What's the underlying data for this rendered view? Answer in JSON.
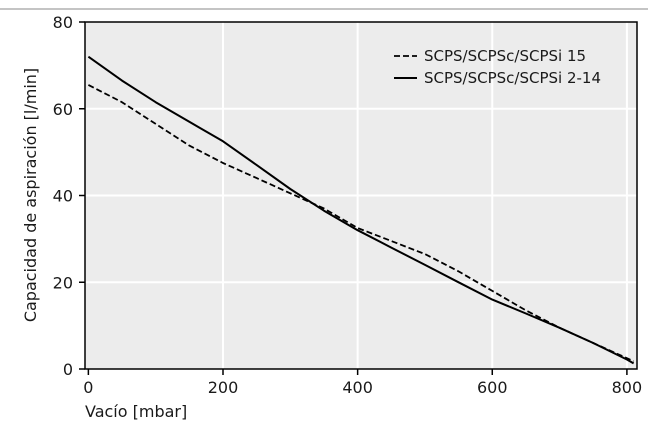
{
  "chart_data": {
    "type": "line",
    "xlabel": "Vacío [mbar]",
    "ylabel": "Capacidad de aspiración [l/min]",
    "xlim": [
      -5,
      815
    ],
    "ylim": [
      0,
      80
    ],
    "x_ticks": [
      0,
      200,
      400,
      600,
      800
    ],
    "y_ticks": [
      0,
      20,
      40,
      60,
      80
    ],
    "grid": true,
    "legend_position": "top-right",
    "colors": {
      "background": "#ececec",
      "grid": "#ffffff",
      "line": "#000000",
      "frame": "#000000"
    },
    "series": [
      {
        "name": "SCPS/SCPSc/SCPSi 15",
        "style": "dashed",
        "x": [
          0,
          50,
          100,
          150,
          200,
          250,
          300,
          350,
          400,
          450,
          500,
          550,
          600,
          650,
          700,
          750,
          800,
          810
        ],
        "y": [
          65.5,
          61.5,
          56.5,
          51.5,
          47.5,
          44,
          40.5,
          37,
          32.5,
          29.5,
          26.5,
          22.5,
          18,
          13.5,
          9.5,
          6,
          2.5,
          1.8
        ]
      },
      {
        "name": "SCPS/SCPSc/SCPSi 2-14",
        "style": "solid",
        "x": [
          0,
          50,
          100,
          150,
          200,
          250,
          300,
          350,
          400,
          450,
          500,
          550,
          600,
          650,
          700,
          750,
          800,
          810
        ],
        "y": [
          72,
          66.5,
          61.5,
          57,
          52.5,
          47,
          41.5,
          36.5,
          32,
          28,
          24,
          20,
          16,
          12.8,
          9.5,
          6,
          2.2,
          1.3
        ]
      }
    ]
  }
}
